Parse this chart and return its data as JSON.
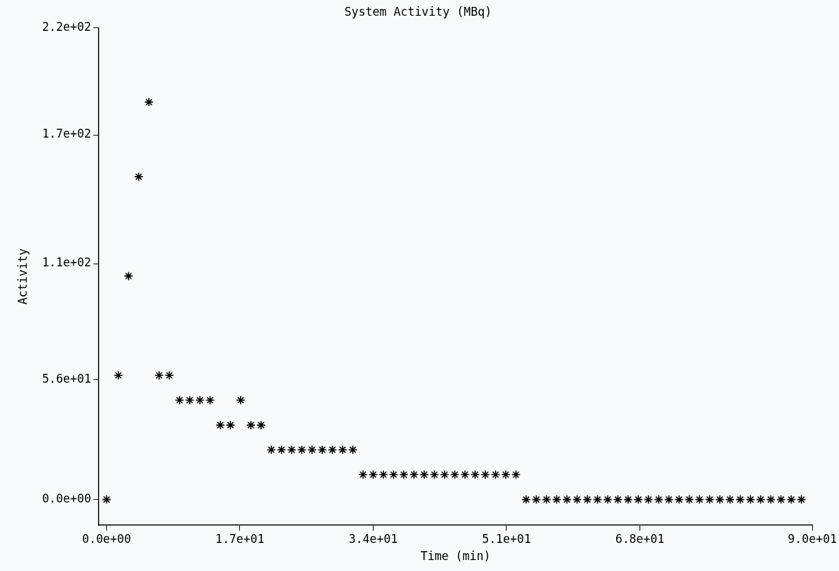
{
  "chart_data": {
    "type": "scatter",
    "title": "System Activity (MBq)",
    "xlabel": "Time (min)",
    "ylabel": "Activity",
    "x": [
      0,
      1.5,
      2.8,
      4.1,
      5.4,
      6.7,
      8.0,
      9.3,
      10.6,
      11.9,
      13.2,
      14.5,
      15.8,
      17.1,
      18.4,
      19.7,
      21.0,
      22.3,
      23.6,
      24.9,
      26.2,
      27.5,
      28.8,
      30.1,
      31.4,
      32.7,
      34.0,
      35.3,
      36.6,
      37.9,
      39.2,
      40.5,
      41.8,
      43.1,
      44.4,
      45.7,
      47.0,
      48.3,
      49.6,
      50.9,
      52.2,
      53.5,
      54.8,
      56.1,
      57.4,
      58.7,
      60.0,
      61.3,
      62.6,
      63.9,
      65.2,
      66.5,
      67.8,
      69.1,
      70.4,
      71.7,
      73.0,
      74.3,
      75.6,
      76.9,
      78.2,
      79.5,
      80.8,
      82.1,
      83.4,
      84.7,
      86.0,
      87.3,
      88.6
    ],
    "values": [
      0,
      57.9,
      104.2,
      150.5,
      185.3,
      57.9,
      57.9,
      46.3,
      46.3,
      46.3,
      46.3,
      34.7,
      34.7,
      46.3,
      34.7,
      34.7,
      23.2,
      23.2,
      23.2,
      23.2,
      23.2,
      23.2,
      23.2,
      23.2,
      23.2,
      11.6,
      11.6,
      11.6,
      11.6,
      11.6,
      11.6,
      11.6,
      11.6,
      11.6,
      11.6,
      11.6,
      11.6,
      11.6,
      11.6,
      11.6,
      11.6,
      0,
      0,
      0,
      0,
      0,
      0,
      0,
      0,
      0,
      0,
      0,
      0,
      0,
      0,
      0,
      0,
      0,
      0,
      0,
      0,
      0,
      0,
      0,
      0,
      0,
      0,
      0,
      0
    ],
    "color": "#000000",
    "marker": "cross",
    "xlim": [
      -1,
      90
    ],
    "xticks": [
      {
        "value": 0,
        "label": "0.0e+00"
      },
      {
        "value": 17,
        "label": "1.7e+01"
      },
      {
        "value": 34,
        "label": "3.4e+01"
      },
      {
        "value": 51,
        "label": "5.1e+01"
      },
      {
        "value": 68,
        "label": "6.8e+01"
      },
      {
        "value": 90,
        "label": "9.0e+01"
      }
    ],
    "ylim": [
      -12,
      220
    ],
    "yticks": [
      {
        "value": 0,
        "label": "0.0e+00"
      },
      {
        "value": 56,
        "label": "5.6e+01"
      },
      {
        "value": 110,
        "label": "1.1e+02"
      },
      {
        "value": 170,
        "label": "1.7e+02"
      },
      {
        "value": 220,
        "label": "2.2e+02"
      }
    ],
    "grid": false,
    "legend": false
  }
}
